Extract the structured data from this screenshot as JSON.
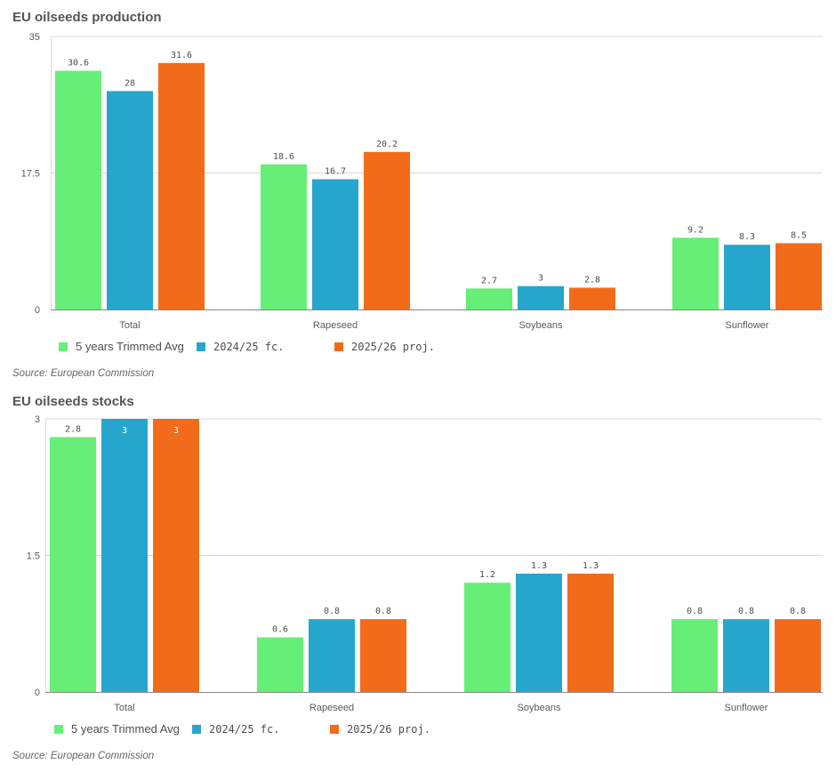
{
  "colors": {
    "avg": "#66ee77",
    "fc": "#26a6cc",
    "proj": "#f26b1a",
    "grid": "#d9d9d9",
    "axis": "#888888"
  },
  "legend": {
    "avg": "5 years Trimmed Avg",
    "fc": "2024/25 fc.",
    "proj": "2025/26 proj."
  },
  "chart_data": [
    {
      "type": "bar",
      "title": "EU oilseeds production",
      "source": "Source: European Commission",
      "categories": [
        "Total",
        "Rapeseed",
        "Soybeans",
        "Sunflower"
      ],
      "ylim": [
        0,
        35
      ],
      "yticks": [
        0,
        17.5,
        35
      ],
      "ytick_labels": [
        "0",
        "17.5",
        "35"
      ],
      "grid": true,
      "legend_position": "bottom-left",
      "series": [
        {
          "name": "5 years Trimmed Avg",
          "values": [
            30.6,
            18.6,
            2.7,
            9.2
          ],
          "labels": [
            "30.6",
            "18.6",
            "2.7",
            "9.2"
          ]
        },
        {
          "name": "2024/25 fc.",
          "values": [
            28,
            16.7,
            3,
            8.3
          ],
          "labels": [
            "28",
            "16.7",
            "3",
            "8.3"
          ]
        },
        {
          "name": "2025/26 proj.",
          "values": [
            31.6,
            20.2,
            2.8,
            8.5
          ],
          "labels": [
            "31.6",
            "20.2",
            "2.8",
            "8.5"
          ]
        }
      ]
    },
    {
      "type": "bar",
      "title": "EU oilseeds stocks",
      "source": "Source: European Commission",
      "categories": [
        "Total",
        "Rapeseed",
        "Soybeans",
        "Sunflower"
      ],
      "ylim": [
        0,
        3
      ],
      "yticks": [
        0,
        1.5,
        3
      ],
      "ytick_labels": [
        "0",
        "1.5",
        "3"
      ],
      "grid": true,
      "legend_position": "bottom-left",
      "series": [
        {
          "name": "5 years Trimmed Avg",
          "values": [
            2.8,
            0.6,
            1.2,
            0.8
          ],
          "labels": [
            "2.8",
            "0.6",
            "1.2",
            "0.8"
          ]
        },
        {
          "name": "2024/25 fc.",
          "values": [
            3,
            0.8,
            1.3,
            0.8
          ],
          "labels": [
            "3",
            "0.8",
            "1.3",
            "0.8"
          ]
        },
        {
          "name": "2025/26 proj.",
          "values": [
            3,
            0.8,
            1.3,
            0.8
          ],
          "labels": [
            "3",
            "0.8",
            "1.3",
            "0.8"
          ]
        }
      ]
    }
  ]
}
